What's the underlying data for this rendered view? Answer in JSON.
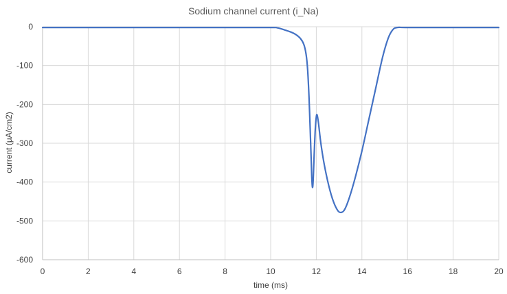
{
  "chart_data": {
    "type": "line",
    "title": "Sodium channel current (i_Na)",
    "xlabel": "time (ms)",
    "ylabel": "current (μA/cm2)",
    "xlim": [
      0,
      20
    ],
    "ylim": [
      -600,
      0
    ],
    "x_ticks": [
      0,
      2,
      4,
      6,
      8,
      10,
      12,
      14,
      16,
      18,
      20
    ],
    "y_ticks": [
      0,
      -100,
      -200,
      -300,
      -400,
      -500,
      -600
    ],
    "grid": true,
    "legend": "none",
    "series": [
      {
        "color": "#4472c4",
        "points": [
          [
            0,
            -2
          ],
          [
            2,
            -2
          ],
          [
            4,
            -2
          ],
          [
            6,
            -2
          ],
          [
            8,
            -2
          ],
          [
            10,
            -2
          ],
          [
            10.3,
            -3
          ],
          [
            10.6,
            -8
          ],
          [
            10.9,
            -14
          ],
          [
            11.1,
            -20
          ],
          [
            11.3,
            -30
          ],
          [
            11.45,
            -45
          ],
          [
            11.55,
            -70
          ],
          [
            11.62,
            -110
          ],
          [
            11.68,
            -180
          ],
          [
            11.73,
            -260
          ],
          [
            11.77,
            -330
          ],
          [
            11.8,
            -385
          ],
          [
            11.83,
            -413
          ],
          [
            11.86,
            -400
          ],
          [
            11.9,
            -340
          ],
          [
            11.95,
            -270
          ],
          [
            12.0,
            -232
          ],
          [
            12.04,
            -228
          ],
          [
            12.1,
            -250
          ],
          [
            12.2,
            -300
          ],
          [
            12.35,
            -355
          ],
          [
            12.55,
            -410
          ],
          [
            12.75,
            -450
          ],
          [
            12.95,
            -474
          ],
          [
            13.1,
            -478
          ],
          [
            13.25,
            -470
          ],
          [
            13.45,
            -440
          ],
          [
            13.7,
            -390
          ],
          [
            14.0,
            -320
          ],
          [
            14.3,
            -240
          ],
          [
            14.6,
            -160
          ],
          [
            14.9,
            -80
          ],
          [
            15.15,
            -30
          ],
          [
            15.35,
            -8
          ],
          [
            15.55,
            -2
          ],
          [
            16,
            -2
          ],
          [
            18,
            -2
          ],
          [
            20,
            -2
          ]
        ]
      }
    ]
  }
}
